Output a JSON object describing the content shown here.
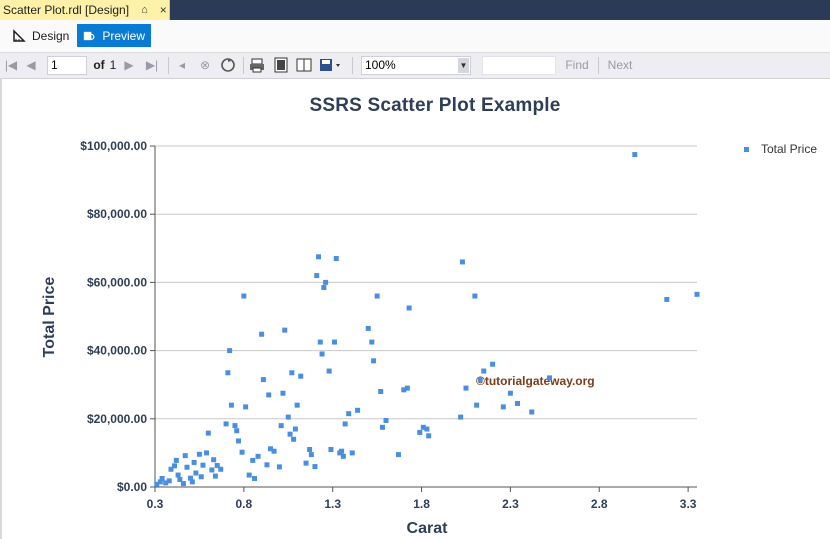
{
  "tab": {
    "title": "Scatter Plot.rdl [Design]",
    "pin_glyph": "⌂",
    "close_glyph": "×"
  },
  "modes": {
    "design_label": "Design",
    "preview_label": "Preview"
  },
  "toolbar": {
    "page_value": "1",
    "of_label": "of",
    "total_pages": "1",
    "zoom_value": "100%",
    "find_label": "Find",
    "next_label": "Next"
  },
  "chart_data": {
    "type": "scatter",
    "title": "SSRS Scatter Plot Example",
    "xlabel": "Carat",
    "ylabel": "Total Price",
    "xlim": [
      0.3,
      3.35
    ],
    "ylim": [
      0,
      100000
    ],
    "xticks": [
      0.3,
      0.8,
      1.3,
      1.8,
      2.3,
      2.8,
      3.3
    ],
    "xtick_labels": [
      "0.3",
      "0.8",
      "1.3",
      "1.8",
      "2.3",
      "2.8",
      "3.3"
    ],
    "yticks": [
      0,
      20000,
      40000,
      60000,
      80000,
      100000
    ],
    "ytick_labels": [
      "$0.00",
      "$20,000.00",
      "$40,000.00",
      "$60,000.00",
      "$80,000.00",
      "$100,000.00"
    ],
    "grid": true,
    "legend_position": "top-right",
    "series": [
      {
        "name": "Total Price",
        "color": "#4a8fdf",
        "points": [
          [
            0.31,
            800
          ],
          [
            0.33,
            1500
          ],
          [
            0.34,
            2500
          ],
          [
            0.36,
            1200
          ],
          [
            0.38,
            1800
          ],
          [
            0.39,
            5200
          ],
          [
            0.41,
            6200
          ],
          [
            0.42,
            7800
          ],
          [
            0.43,
            3500
          ],
          [
            0.44,
            2200
          ],
          [
            0.46,
            1000
          ],
          [
            0.47,
            9200
          ],
          [
            0.48,
            5800
          ],
          [
            0.5,
            2600
          ],
          [
            0.51,
            1500
          ],
          [
            0.52,
            7200
          ],
          [
            0.53,
            4100
          ],
          [
            0.55,
            9600
          ],
          [
            0.56,
            3000
          ],
          [
            0.57,
            6400
          ],
          [
            0.59,
            10000
          ],
          [
            0.6,
            15800
          ],
          [
            0.62,
            5000
          ],
          [
            0.63,
            8000
          ],
          [
            0.64,
            3200
          ],
          [
            0.65,
            6300
          ],
          [
            0.67,
            5200
          ],
          [
            0.7,
            18500
          ],
          [
            0.71,
            33500
          ],
          [
            0.72,
            40000
          ],
          [
            0.73,
            24000
          ],
          [
            0.75,
            18000
          ],
          [
            0.76,
            16500
          ],
          [
            0.77,
            13500
          ],
          [
            0.79,
            10200
          ],
          [
            0.8,
            56000
          ],
          [
            0.81,
            23500
          ],
          [
            0.83,
            3500
          ],
          [
            0.85,
            7800
          ],
          [
            0.86,
            2500
          ],
          [
            0.88,
            9000
          ],
          [
            0.9,
            44800
          ],
          [
            0.91,
            31500
          ],
          [
            0.93,
            6500
          ],
          [
            0.94,
            27000
          ],
          [
            0.95,
            11200
          ],
          [
            0.97,
            10500
          ],
          [
            1.0,
            5900
          ],
          [
            1.01,
            18000
          ],
          [
            1.02,
            27500
          ],
          [
            1.03,
            46000
          ],
          [
            1.05,
            20500
          ],
          [
            1.06,
            15500
          ],
          [
            1.07,
            33500
          ],
          [
            1.08,
            14000
          ],
          [
            1.09,
            17000
          ],
          [
            1.1,
            24000
          ],
          [
            1.12,
            32500
          ],
          [
            1.15,
            7000
          ],
          [
            1.17,
            11000
          ],
          [
            1.18,
            9500
          ],
          [
            1.2,
            6000
          ],
          [
            1.21,
            62000
          ],
          [
            1.22,
            67500
          ],
          [
            1.23,
            42500
          ],
          [
            1.24,
            39000
          ],
          [
            1.25,
            58500
          ],
          [
            1.26,
            60000
          ],
          [
            1.28,
            34000
          ],
          [
            1.29,
            11000
          ],
          [
            1.31,
            42500
          ],
          [
            1.32,
            67000
          ],
          [
            1.34,
            10000
          ],
          [
            1.35,
            10500
          ],
          [
            1.36,
            9000
          ],
          [
            1.37,
            18500
          ],
          [
            1.39,
            21500
          ],
          [
            1.41,
            10000
          ],
          [
            1.44,
            22500
          ],
          [
            1.5,
            46500
          ],
          [
            1.52,
            42500
          ],
          [
            1.53,
            37000
          ],
          [
            1.55,
            56000
          ],
          [
            1.57,
            28000
          ],
          [
            1.58,
            17500
          ],
          [
            1.6,
            19500
          ],
          [
            1.67,
            9500
          ],
          [
            1.7,
            28500
          ],
          [
            1.72,
            29000
          ],
          [
            1.73,
            52500
          ],
          [
            1.79,
            16000
          ],
          [
            1.81,
            17500
          ],
          [
            1.83,
            17000
          ],
          [
            1.84,
            15000
          ],
          [
            2.02,
            20500
          ],
          [
            2.03,
            66000
          ],
          [
            2.05,
            29000
          ],
          [
            2.1,
            56000
          ],
          [
            2.11,
            24000
          ],
          [
            2.13,
            31500
          ],
          [
            2.15,
            34000
          ],
          [
            2.2,
            36000
          ],
          [
            2.26,
            23500
          ],
          [
            2.3,
            27500
          ],
          [
            2.34,
            24500
          ],
          [
            2.42,
            22000
          ],
          [
            2.52,
            32000
          ],
          [
            3.0,
            97500
          ],
          [
            3.18,
            55000
          ],
          [
            3.35,
            56500
          ]
        ]
      }
    ]
  },
  "watermark": "©tutorialgateway.org"
}
